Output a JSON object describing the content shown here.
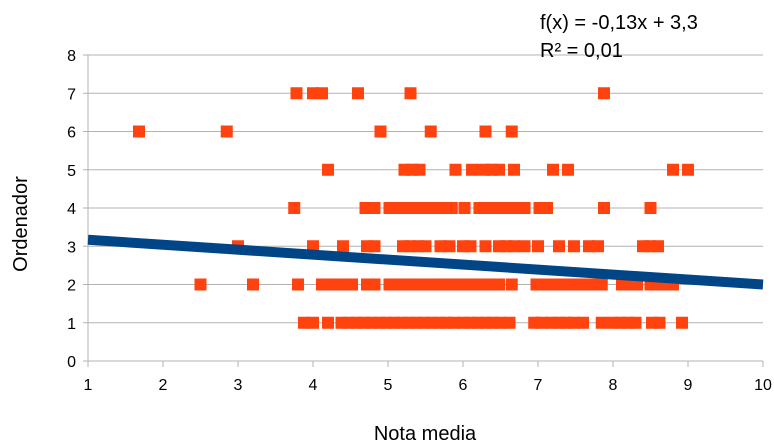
{
  "chart_data": {
    "type": "scatter",
    "title": "",
    "xlabel": "Nota media",
    "ylabel": "Ordenador",
    "xlim": [
      1,
      10
    ],
    "ylim": [
      0,
      8
    ],
    "xticks": [
      "1",
      "2",
      "3",
      "4",
      "5",
      "6",
      "7",
      "8",
      "9",
      "10"
    ],
    "yticks": [
      "0",
      "1",
      "2",
      "3",
      "4",
      "5",
      "6",
      "7",
      "8"
    ],
    "grid": "horizontal",
    "legend": "none",
    "marker_color": "#ff420e",
    "trendline_color": "#004586",
    "trendline": {
      "slope": -0.13,
      "intercept": 3.3
    },
    "trendline_labels": {
      "equation": "f(x) = -0,13x + 3,3",
      "r2": "R² = 0,01"
    },
    "series": [
      {
        "points": [
          [
            1.68,
            6
          ],
          [
            2.85,
            6
          ],
          [
            4.9,
            6
          ],
          [
            5.57,
            6
          ],
          [
            6.3,
            6
          ],
          [
            6.65,
            6
          ],
          [
            3.78,
            7
          ],
          [
            4.0,
            7
          ],
          [
            4.12,
            7
          ],
          [
            4.6,
            7
          ],
          [
            5.3,
            7
          ],
          [
            7.88,
            7
          ],
          [
            4.2,
            5
          ],
          [
            5.22,
            5
          ],
          [
            5.32,
            5
          ],
          [
            5.42,
            5
          ],
          [
            5.9,
            5
          ],
          [
            6.12,
            5
          ],
          [
            6.28,
            5
          ],
          [
            6.38,
            5
          ],
          [
            6.48,
            5
          ],
          [
            6.68,
            5
          ],
          [
            7.2,
            5
          ],
          [
            7.4,
            5
          ],
          [
            8.8,
            5
          ],
          [
            9.0,
            5
          ],
          [
            3.75,
            4
          ],
          [
            4.7,
            4
          ],
          [
            4.82,
            4
          ],
          [
            5.02,
            4
          ],
          [
            5.12,
            4
          ],
          [
            5.22,
            4
          ],
          [
            5.32,
            4
          ],
          [
            5.42,
            4
          ],
          [
            5.5,
            4
          ],
          [
            5.62,
            4
          ],
          [
            5.72,
            4
          ],
          [
            5.85,
            4
          ],
          [
            6.02,
            4
          ],
          [
            6.22,
            4
          ],
          [
            6.32,
            4
          ],
          [
            6.42,
            4
          ],
          [
            6.52,
            4
          ],
          [
            6.62,
            4
          ],
          [
            6.72,
            4
          ],
          [
            6.82,
            4
          ],
          [
            7.02,
            4
          ],
          [
            7.12,
            4
          ],
          [
            7.88,
            4
          ],
          [
            8.5,
            4
          ],
          [
            3.0,
            3
          ],
          [
            4.0,
            3
          ],
          [
            4.4,
            3
          ],
          [
            4.72,
            3
          ],
          [
            4.82,
            3
          ],
          [
            5.2,
            3
          ],
          [
            5.3,
            3
          ],
          [
            5.4,
            3
          ],
          [
            5.5,
            3
          ],
          [
            5.7,
            3
          ],
          [
            5.82,
            3
          ],
          [
            6.0,
            3
          ],
          [
            6.1,
            3
          ],
          [
            6.3,
            3
          ],
          [
            6.48,
            3
          ],
          [
            6.58,
            3
          ],
          [
            6.68,
            3
          ],
          [
            6.82,
            3
          ],
          [
            7.0,
            3
          ],
          [
            7.28,
            3
          ],
          [
            7.48,
            3
          ],
          [
            7.68,
            3
          ],
          [
            7.8,
            3
          ],
          [
            8.4,
            3
          ],
          [
            8.5,
            3
          ],
          [
            8.6,
            3
          ],
          [
            2.5,
            2
          ],
          [
            3.2,
            2
          ],
          [
            3.8,
            2
          ],
          [
            4.12,
            2
          ],
          [
            4.22,
            2
          ],
          [
            4.32,
            2
          ],
          [
            4.42,
            2
          ],
          [
            4.52,
            2
          ],
          [
            4.72,
            2
          ],
          [
            4.82,
            2
          ],
          [
            5.02,
            2
          ],
          [
            5.12,
            2
          ],
          [
            5.22,
            2
          ],
          [
            5.32,
            2
          ],
          [
            5.42,
            2
          ],
          [
            5.52,
            2
          ],
          [
            5.62,
            2
          ],
          [
            5.72,
            2
          ],
          [
            5.82,
            2
          ],
          [
            5.98,
            2
          ],
          [
            6.08,
            2
          ],
          [
            6.18,
            2
          ],
          [
            6.28,
            2
          ],
          [
            6.38,
            2
          ],
          [
            6.48,
            2
          ],
          [
            6.65,
            2
          ],
          [
            6.98,
            2
          ],
          [
            7.08,
            2
          ],
          [
            7.18,
            2
          ],
          [
            7.28,
            2
          ],
          [
            7.38,
            2
          ],
          [
            7.48,
            2
          ],
          [
            7.58,
            2
          ],
          [
            7.68,
            2
          ],
          [
            7.78,
            2
          ],
          [
            7.85,
            2
          ],
          [
            8.12,
            2
          ],
          [
            8.22,
            2
          ],
          [
            8.32,
            2
          ],
          [
            8.5,
            2
          ],
          [
            8.6,
            2
          ],
          [
            8.7,
            2
          ],
          [
            8.8,
            2
          ],
          [
            3.88,
            1
          ],
          [
            4.0,
            1
          ],
          [
            4.2,
            1
          ],
          [
            4.38,
            1
          ],
          [
            4.48,
            1
          ],
          [
            4.58,
            1
          ],
          [
            4.68,
            1
          ],
          [
            4.78,
            1
          ],
          [
            4.88,
            1
          ],
          [
            4.98,
            1
          ],
          [
            5.08,
            1
          ],
          [
            5.18,
            1
          ],
          [
            5.28,
            1
          ],
          [
            5.38,
            1
          ],
          [
            5.48,
            1
          ],
          [
            5.58,
            1
          ],
          [
            5.68,
            1
          ],
          [
            5.78,
            1
          ],
          [
            5.88,
            1
          ],
          [
            6.0,
            1
          ],
          [
            6.1,
            1
          ],
          [
            6.2,
            1
          ],
          [
            6.3,
            1
          ],
          [
            6.4,
            1
          ],
          [
            6.5,
            1
          ],
          [
            6.62,
            1
          ],
          [
            6.95,
            1
          ],
          [
            7.05,
            1
          ],
          [
            7.18,
            1
          ],
          [
            7.28,
            1
          ],
          [
            7.38,
            1
          ],
          [
            7.48,
            1
          ],
          [
            7.6,
            1
          ],
          [
            7.85,
            1
          ],
          [
            8.0,
            1
          ],
          [
            8.1,
            1
          ],
          [
            8.2,
            1
          ],
          [
            8.3,
            1
          ],
          [
            8.52,
            1
          ],
          [
            8.62,
            1
          ],
          [
            8.92,
            1
          ]
        ]
      }
    ]
  }
}
